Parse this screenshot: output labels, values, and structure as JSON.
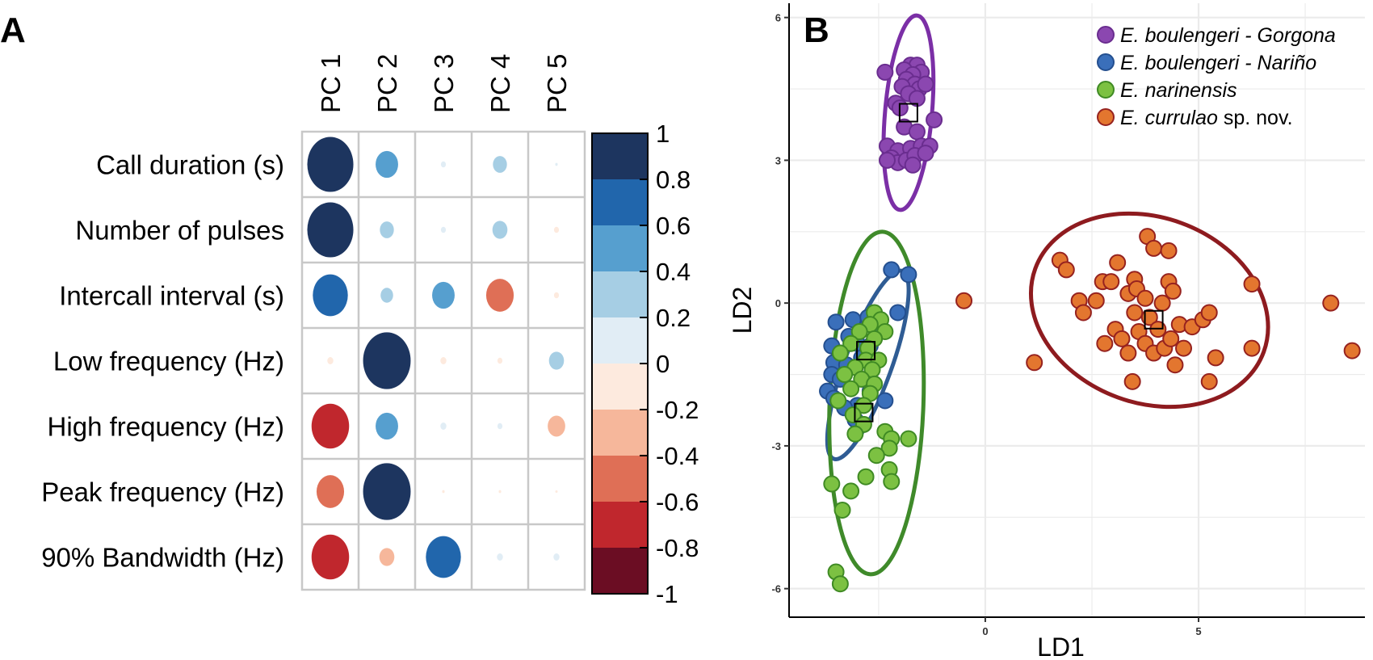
{
  "panel_a": {
    "letter": "A"
  },
  "panel_b": {
    "letter": "B"
  },
  "chart_data": [
    {
      "type": "heatmap",
      "columns": [
        "PC 1",
        "PC 2",
        "PC 3",
        "PC 4",
        "PC 5"
      ],
      "rows": [
        "Call duration (s)",
        "Number of pulses",
        "Intercall interval (s)",
        "Low frequency (Hz)",
        "High frequency (Hz)",
        "Peak frequency (Hz)",
        "90% Bandwidth (Hz)"
      ],
      "values": [
        [
          0.92,
          0.45,
          0.1,
          0.28,
          0.05
        ],
        [
          0.92,
          0.28,
          0.1,
          0.3,
          -0.1
        ],
        [
          0.7,
          0.25,
          0.45,
          -0.55,
          -0.1
        ],
        [
          -0.12,
          0.95,
          -0.12,
          -0.1,
          0.3
        ],
        [
          -0.75,
          0.45,
          0.12,
          0.1,
          -0.35
        ],
        [
          -0.55,
          0.95,
          -0.05,
          -0.05,
          -0.03
        ],
        [
          -0.75,
          -0.3,
          0.7,
          0.12,
          0.12
        ]
      ],
      "colorbar": {
        "range": [
          -1,
          1
        ],
        "tick_labels": [
          "1",
          "0.8",
          "0.6",
          "0.4",
          "0.2",
          "0",
          "-0.2",
          "-0.4",
          "-0.6",
          "-0.8",
          "-1"
        ],
        "colors": [
          "#1d355f",
          "#2166ac",
          "#569fcf",
          "#a6cee4",
          "#e1edf5",
          "#fdeade",
          "#f6b79b",
          "#df6f56",
          "#c0272d",
          "#6b0d23"
        ]
      }
    },
    {
      "type": "scatter",
      "xlabel": "LD1",
      "ylabel": "LD2",
      "xlim": [
        -4.6,
        8.9
      ],
      "ylim": [
        -6.6,
        6.3
      ],
      "x_ticks": [
        0,
        5
      ],
      "y_ticks": [
        -6,
        -3,
        0,
        3,
        6
      ],
      "grid": true,
      "legend_position": "top-right",
      "series": [
        {
          "name_italic": "E. boulengeri - Gorgona",
          "name_plain": "",
          "color": "#8b47b0",
          "stroke": "#6a2d8f",
          "ellipse_color": "#7b2fa6",
          "ellipse": {
            "cx": -1.8,
            "cy": 4.0,
            "rx": 0.55,
            "ry": 2.05,
            "angle": 5
          },
          "centroid": [
            -1.8,
            4.0
          ],
          "points": [
            [
              -1.75,
              5.0
            ],
            [
              -1.6,
              5.0
            ],
            [
              -1.9,
              4.9
            ],
            [
              -1.5,
              4.85
            ],
            [
              -1.7,
              4.8
            ],
            [
              -1.85,
              4.7
            ],
            [
              -1.65,
              4.6
            ],
            [
              -1.95,
              4.55
            ],
            [
              -1.55,
              4.5
            ],
            [
              -1.8,
              4.4
            ],
            [
              -1.6,
              4.3
            ],
            [
              -1.4,
              4.6
            ],
            [
              -2.35,
              4.85
            ],
            [
              -2.1,
              4.2
            ],
            [
              -2.0,
              4.1
            ],
            [
              -1.9,
              3.7
            ],
            [
              -1.6,
              3.6
            ],
            [
              -1.2,
              3.85
            ],
            [
              -2.3,
              3.3
            ],
            [
              -2.05,
              3.2
            ],
            [
              -1.75,
              3.25
            ],
            [
              -1.5,
              3.3
            ],
            [
              -1.3,
              3.3
            ],
            [
              -2.2,
              3.05
            ],
            [
              -2.05,
              2.95
            ],
            [
              -1.85,
              3.0
            ],
            [
              -1.65,
              3.1
            ],
            [
              -1.4,
              3.15
            ],
            [
              -2.3,
              3.0
            ],
            [
              -1.7,
              2.9
            ]
          ]
        },
        {
          "name_italic": "E. boulengeri - Nariño",
          "name_plain": "",
          "color": "#3a6fba",
          "stroke": "#244f8f",
          "ellipse_color": "#2f5c94",
          "ellipse": {
            "cx": -2.75,
            "cy": -1.3,
            "rx": 0.55,
            "ry": 2.1,
            "angle": 20
          },
          "centroid": [
            -2.8,
            -1.0
          ],
          "points": [
            [
              -2.2,
              0.7
            ],
            [
              -1.8,
              0.6
            ],
            [
              -2.05,
              -0.2
            ],
            [
              -3.1,
              -0.35
            ],
            [
              -3.5,
              -0.4
            ],
            [
              -2.75,
              -0.3
            ],
            [
              -2.55,
              -0.45
            ],
            [
              -3.2,
              -0.7
            ],
            [
              -3.0,
              -0.85
            ],
            [
              -2.7,
              -0.9
            ],
            [
              -3.6,
              -0.9
            ],
            [
              -3.4,
              -1.05
            ],
            [
              -2.9,
              -1.15
            ],
            [
              -3.55,
              -1.25
            ],
            [
              -3.25,
              -1.3
            ],
            [
              -3.6,
              -1.5
            ],
            [
              -3.4,
              -1.6
            ],
            [
              -3.7,
              -1.85
            ],
            [
              -3.55,
              -2.0
            ],
            [
              -2.35,
              -2.05
            ],
            [
              -2.7,
              -1.85
            ],
            [
              -3.0,
              -2.15
            ],
            [
              -3.3,
              -2.2
            ],
            [
              -3.05,
              -2.45
            ]
          ]
        },
        {
          "name_italic": "E. narinensis",
          "name_plain": "",
          "color": "#7cc142",
          "stroke": "#3f8a24",
          "ellipse_color": "#3f8a2a",
          "ellipse": {
            "cx": -2.55,
            "cy": -2.1,
            "rx": 1.1,
            "ry": 3.6,
            "angle": 2
          },
          "centroid": [
            -2.85,
            -2.3
          ],
          "points": [
            [
              -2.6,
              -0.2
            ],
            [
              -2.45,
              -0.35
            ],
            [
              -2.7,
              -0.45
            ],
            [
              -2.35,
              -0.6
            ],
            [
              -2.95,
              -0.6
            ],
            [
              -2.6,
              -0.75
            ],
            [
              -3.15,
              -0.85
            ],
            [
              -2.75,
              -0.95
            ],
            [
              -3.4,
              -1.05
            ],
            [
              -2.8,
              -1.2
            ],
            [
              -2.5,
              -1.2
            ],
            [
              -3.05,
              -1.35
            ],
            [
              -2.65,
              -1.4
            ],
            [
              -3.3,
              -1.5
            ],
            [
              -2.9,
              -1.6
            ],
            [
              -2.6,
              -1.7
            ],
            [
              -3.15,
              -1.8
            ],
            [
              -2.7,
              -1.9
            ],
            [
              -3.45,
              -2.05
            ],
            [
              -2.85,
              -2.15
            ],
            [
              -3.1,
              -2.35
            ],
            [
              -2.85,
              -2.55
            ],
            [
              -2.35,
              -2.7
            ],
            [
              -3.05,
              -2.75
            ],
            [
              -1.8,
              -2.85
            ],
            [
              -2.2,
              -2.85
            ],
            [
              -2.25,
              -3.05
            ],
            [
              -2.55,
              -3.2
            ],
            [
              -2.25,
              -3.5
            ],
            [
              -2.2,
              -3.75
            ],
            [
              -3.6,
              -3.8
            ],
            [
              -2.8,
              -3.65
            ],
            [
              -3.15,
              -3.95
            ],
            [
              -3.35,
              -4.35
            ],
            [
              -3.5,
              -5.65
            ],
            [
              -3.4,
              -5.9
            ]
          ]
        },
        {
          "name_italic": "E. currulao",
          "name_plain": " sp. nov.",
          "color": "#e3762f",
          "stroke": "#96221f",
          "ellipse_color": "#8e1b1f",
          "ellipse": {
            "cx": 3.85,
            "cy": -0.15,
            "rx": 2.85,
            "ry": 1.95,
            "angle": 20
          },
          "centroid": [
            3.95,
            -0.35
          ],
          "points": [
            [
              -0.5,
              0.05
            ],
            [
              1.15,
              -1.25
            ],
            [
              1.75,
              0.9
            ],
            [
              1.9,
              0.7
            ],
            [
              2.2,
              0.05
            ],
            [
              2.6,
              0.05
            ],
            [
              2.3,
              -0.2
            ],
            [
              2.75,
              0.45
            ],
            [
              2.95,
              0.45
            ],
            [
              3.1,
              0.85
            ],
            [
              3.35,
              0.2
            ],
            [
              3.5,
              0.5
            ],
            [
              3.55,
              0.3
            ],
            [
              3.75,
              0.1
            ],
            [
              3.8,
              1.4
            ],
            [
              3.95,
              1.15
            ],
            [
              4.15,
              0.0
            ],
            [
              4.3,
              1.1
            ],
            [
              4.3,
              0.45
            ],
            [
              4.4,
              0.25
            ],
            [
              2.8,
              -0.85
            ],
            [
              3.05,
              -0.55
            ],
            [
              3.2,
              -0.75
            ],
            [
              3.35,
              -1.05
            ],
            [
              3.5,
              -0.2
            ],
            [
              3.6,
              -0.6
            ],
            [
              3.75,
              -0.85
            ],
            [
              3.85,
              -0.3
            ],
            [
              3.95,
              -1.05
            ],
            [
              4.05,
              -0.55
            ],
            [
              4.2,
              -0.95
            ],
            [
              4.35,
              -0.75
            ],
            [
              4.45,
              -1.3
            ],
            [
              4.55,
              -0.45
            ],
            [
              4.65,
              -0.95
            ],
            [
              4.85,
              -0.5
            ],
            [
              5.1,
              -0.35
            ],
            [
              5.25,
              -0.2
            ],
            [
              5.4,
              -1.15
            ],
            [
              5.25,
              -1.65
            ],
            [
              3.45,
              -1.65
            ],
            [
              6.25,
              0.4
            ],
            [
              6.25,
              -0.95
            ],
            [
              8.1,
              0.0
            ],
            [
              8.6,
              -1.0
            ]
          ]
        }
      ]
    }
  ]
}
